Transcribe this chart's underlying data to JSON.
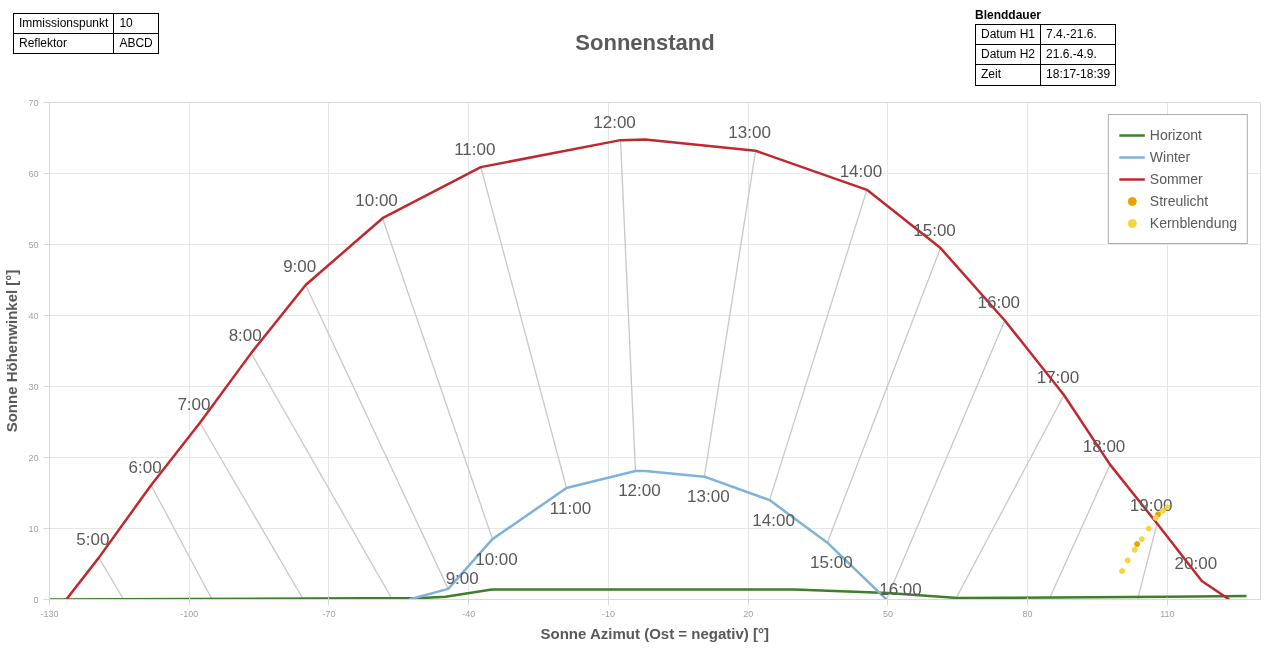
{
  "chart_data": {
    "type": "line",
    "title": "Sonnenstand",
    "xlabel": "Sonne Azimut (Ost = negativ) [°]",
    "ylabel": "Sonne Höhenwinkel [°]",
    "xlim": [
      -130,
      130
    ],
    "xticks": [
      -130,
      -100,
      -70,
      -40,
      -10,
      20,
      50,
      80,
      110
    ],
    "ylim": [
      0,
      70
    ],
    "yticks": [
      0,
      10,
      20,
      30,
      40,
      50,
      60,
      70
    ],
    "grid": true,
    "legend": "top right",
    "series": [
      {
        "type": "line",
        "color": "#c8c8c8",
        "x": [
          -119.4,
          -114.1
        ],
        "values": [
          5.9,
          0
        ]
      },
      {
        "type": "line",
        "color": "#c8c8c8",
        "x": [
          -108.2,
          -95.1
        ],
        "values": [
          16.1,
          0
        ]
      },
      {
        "type": "line",
        "color": "#c8c8c8",
        "x": [
          -97.7,
          -75.5
        ],
        "values": [
          24.9,
          0
        ]
      },
      {
        "type": "line",
        "color": "#c8c8c8",
        "x": [
          -86.7,
          -56.4
        ],
        "values": [
          34.7,
          0
        ]
      },
      {
        "type": "line",
        "color": "#c8c8c8",
        "x": [
          -75.0,
          -44.4
        ],
        "values": [
          44.3,
          1.5
        ]
      },
      {
        "type": "line",
        "color": "#c8c8c8",
        "x": [
          -58.5,
          -34.9
        ],
        "values": [
          53.7,
          8.5
        ]
      },
      {
        "type": "line",
        "color": "#c8c8c8",
        "x": [
          -37.4,
          -19.0
        ],
        "values": [
          60.9,
          15.7
        ]
      },
      {
        "type": "line",
        "color": "#c8c8c8",
        "x": [
          -7.4,
          -4.2
        ],
        "values": [
          64.7,
          18.1
        ]
      },
      {
        "type": "line",
        "color": "#c8c8c8",
        "x": [
          21.6,
          10.6
        ],
        "values": [
          63.2,
          17.3
        ]
      },
      {
        "type": "line",
        "color": "#c8c8c8",
        "x": [
          45.5,
          24.6
        ],
        "values": [
          57.7,
          14
        ]
      },
      {
        "type": "line",
        "color": "#c8c8c8",
        "x": [
          61.3,
          37
        ],
        "values": [
          49.5,
          8
        ]
      },
      {
        "type": "line",
        "color": "#c8c8c8",
        "x": [
          75.1,
          49.7
        ],
        "values": [
          39.3,
          0
        ]
      },
      {
        "type": "line",
        "color": "#c8c8c8",
        "x": [
          87.8,
          64.5
        ],
        "values": [
          28.8,
          0
        ]
      },
      {
        "type": "line",
        "color": "#c8c8c8",
        "x": [
          97.7,
          84.6
        ],
        "values": [
          19,
          0
        ]
      },
      {
        "type": "line",
        "color": "#c8c8c8",
        "x": [
          107.8,
          103.6
        ],
        "values": [
          10.7,
          0
        ]
      },
      {
        "name": "Horizont",
        "color": "#3f7f2a",
        "x": [
          -130,
          -50,
          -45,
          -35,
          30,
          50,
          65,
          110,
          127
        ],
        "values": [
          0,
          0.2,
          0.4,
          1.4,
          1.4,
          0.9,
          0.2,
          0.4,
          0.5
        ]
      },
      {
        "name": "Winter",
        "color": "#7fb2d8",
        "x": [
          -52.8,
          -44.4,
          -34.9,
          -19.0,
          -4.2,
          -2.1,
          10.6,
          24.6,
          37,
          49.7
        ],
        "values": [
          0,
          1.5,
          8.5,
          15.7,
          18.1,
          18.1,
          17.3,
          14,
          8,
          0
        ]
      },
      {
        "name": "Sommer",
        "color": "#c0282e",
        "x": [
          -126.4,
          -119.4,
          -108.2,
          -97.7,
          -86.7,
          -75.0,
          -58.5,
          -37.4,
          -7.4,
          -2.1,
          21.6,
          45.5,
          61.3,
          75.1,
          87.8,
          97.7,
          107.8,
          117.4,
          123.3
        ],
        "values": [
          0,
          5.9,
          16.1,
          24.9,
          34.7,
          44.3,
          53.7,
          60.9,
          64.7,
          64.8,
          63.2,
          57.7,
          49.5,
          39.3,
          28.8,
          19,
          10.7,
          2.6,
          0
        ]
      },
      {
        "type": "scatter",
        "name": "Streulicht",
        "color": "#e8a400",
        "marker": "circle",
        "x": [
          103.5,
          108
        ],
        "values": [
          7.8,
          12
        ]
      },
      {
        "type": "scatter",
        "name": "Kernblendung",
        "color": "#f5d640",
        "marker": "circle",
        "x": [
          100.3,
          101.5,
          103,
          104.5,
          106,
          107.5,
          109,
          110
        ],
        "values": [
          4,
          5.5,
          7,
          8.5,
          10,
          11.5,
          12.5,
          13
        ]
      }
    ],
    "annotations": [
      "Immissionspunkt",
      "10",
      "Reflektor",
      "ABCD",
      "Blenddauer",
      "Datum H1",
      "7.4.-21.6.",
      "Datum H2",
      "21.6.-4.9.",
      "Zeit",
      "18:17-18:39",
      {
        "text": "5:00",
        "x": -119.4,
        "y": 5.9
      },
      {
        "text": "6:00",
        "x": -108.2,
        "y": 16.1
      },
      {
        "text": "7:00",
        "x": -97.7,
        "y": 24.9
      },
      {
        "text": "8:00",
        "x": -86.7,
        "y": 34.7
      },
      {
        "text": "9:00",
        "x": -75.0,
        "y": 44.3
      },
      {
        "text": "10:00",
        "x": -58.5,
        "y": 53.7
      },
      {
        "text": "11:00",
        "x": -37.4,
        "y": 60.9
      },
      {
        "text": "12:00",
        "x": -7.4,
        "y": 64.7
      },
      {
        "text": "13:00",
        "x": 21.6,
        "y": 63.2
      },
      {
        "text": "14:00",
        "x": 45.5,
        "y": 57.7
      },
      {
        "text": "15:00",
        "x": 61.3,
        "y": 49.5
      },
      {
        "text": "16:00",
        "x": 75.1,
        "y": 39.3
      },
      {
        "text": "17:00",
        "x": 87.8,
        "y": 28.8
      },
      {
        "text": "18:00",
        "x": 97.7,
        "y": 19
      },
      {
        "text": "19:00",
        "x": 107.8,
        "y": 10.7
      },
      {
        "text": "20:00",
        "x": 117.4,
        "y": 2.6
      },
      {
        "text": "9:00",
        "x": -44.4,
        "y": 1.5
      },
      {
        "text": "10:00",
        "x": -34.9,
        "y": 8.5
      },
      {
        "text": "11:00",
        "x": -19.0,
        "y": 15.7
      },
      {
        "text": "12:00",
        "x": -4.2,
        "y": 18.1
      },
      {
        "text": "13:00",
        "x": 10.6,
        "y": 17.3
      },
      {
        "text": "14:00",
        "x": 24.6,
        "y": 14
      },
      {
        "text": "15:00",
        "x": 37,
        "y": 8
      },
      {
        "text": "16:00",
        "x": 49.7,
        "y": 0
      }
    ]
  }
}
